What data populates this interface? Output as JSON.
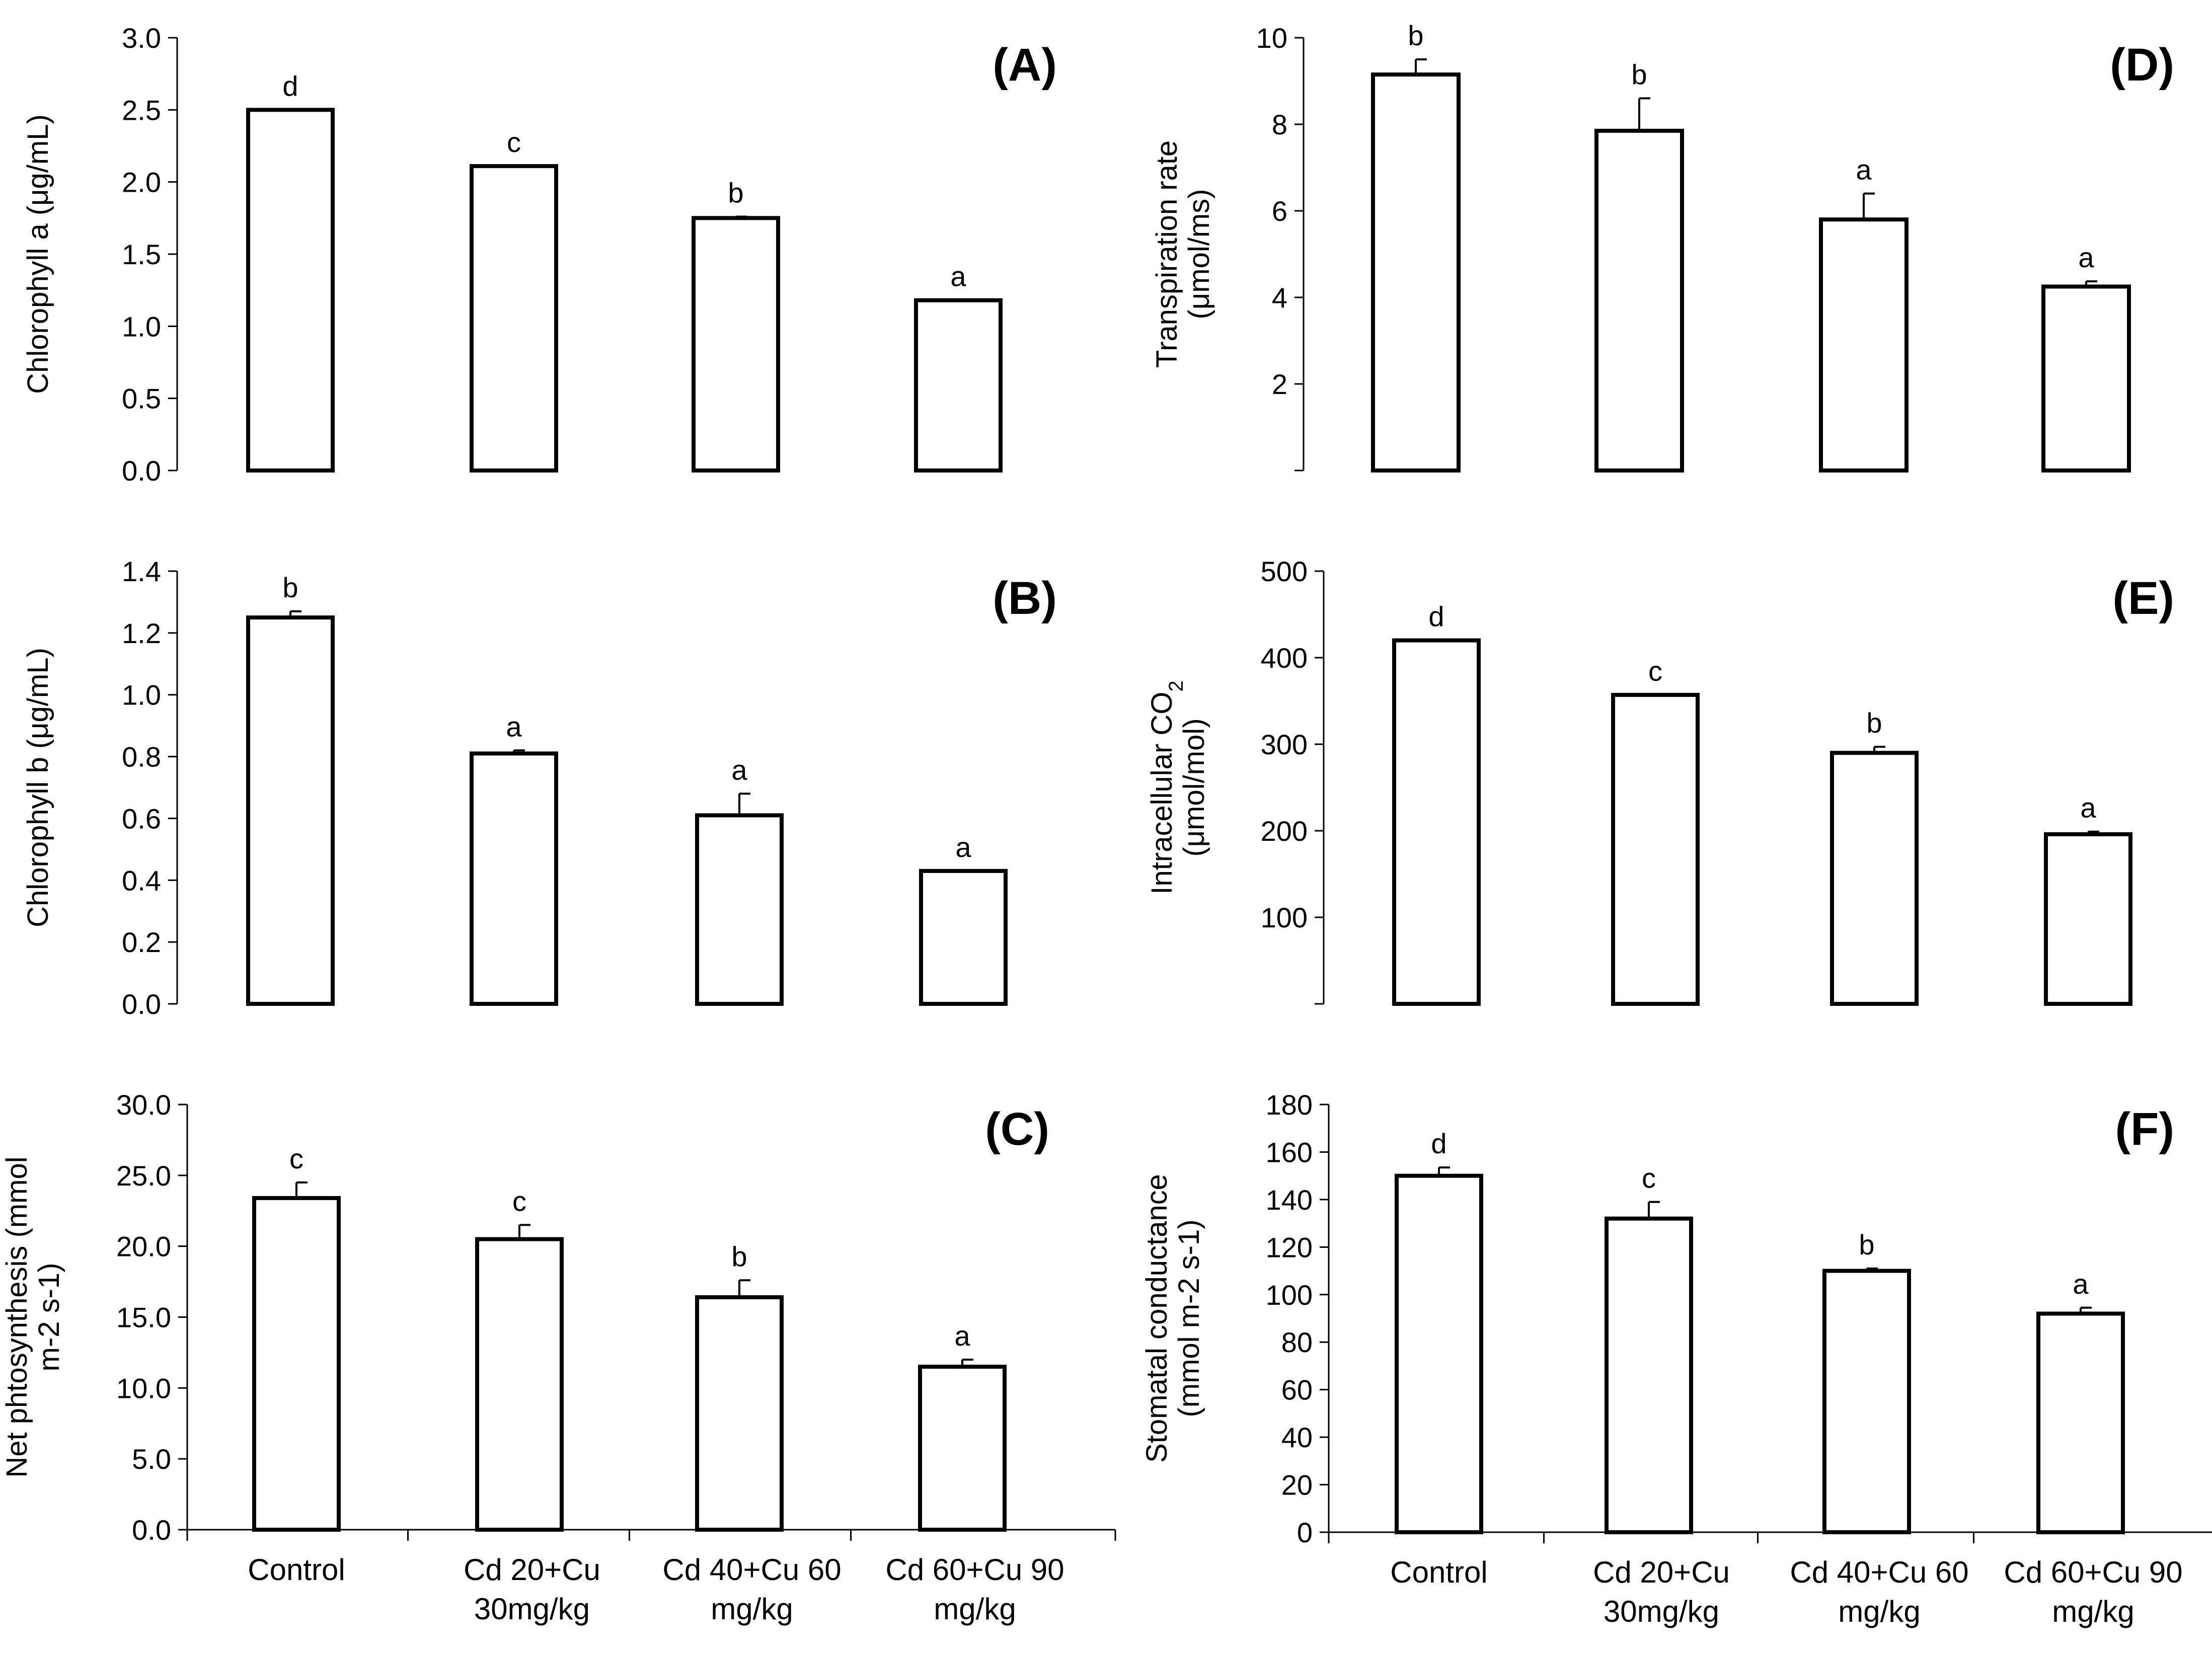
{
  "categories": [
    [
      "Control"
    ],
    [
      "Cd 20+Cu",
      "30mg/kg"
    ],
    [
      "Cd 40+Cu 60",
      "mg/kg"
    ],
    [
      "Cd 60+Cu 90",
      "mg/kg"
    ]
  ],
  "chart_data": [
    {
      "type": "bar",
      "panel_label": "(A)",
      "ylabel": [
        "Chlorophyll a (μg/mL)"
      ],
      "ylim": [
        0,
        3.0
      ],
      "yticks": [
        0.0,
        0.5,
        1.0,
        1.5,
        2.0,
        2.5,
        3.0
      ],
      "ytick_labels": [
        "0.0",
        "0.5",
        "1.0",
        "1.5",
        "2.0",
        "2.5",
        "3.0"
      ],
      "values": [
        2.5,
        2.11,
        1.75,
        1.18
      ],
      "errors": [
        0,
        0,
        0.01,
        0
      ],
      "sig": [
        "d",
        "c",
        "b",
        "a"
      ],
      "show_categories": false
    },
    {
      "type": "bar",
      "panel_label": "(B)",
      "ylabel": [
        "Chlorophyll b (μg/mL)"
      ],
      "ylim": [
        0,
        1.4
      ],
      "yticks": [
        0.0,
        0.2,
        0.4,
        0.6,
        0.8,
        1.0,
        1.2,
        1.4
      ],
      "ytick_labels": [
        "0.0",
        "0.2",
        "0.4",
        "0.6",
        "0.8",
        "1.0",
        "1.2",
        "1.4"
      ],
      "values": [
        1.25,
        0.81,
        0.61,
        0.43
      ],
      "errors": [
        0.02,
        0.01,
        0.07,
        0
      ],
      "sig": [
        "b",
        "a",
        "a",
        "a"
      ],
      "show_categories": false
    },
    {
      "type": "bar",
      "panel_label": "(C)",
      "ylabel": [
        "Net phtosynthesis (mmol",
        "m-2 s-1)"
      ],
      "ylim": [
        0,
        30.0
      ],
      "yticks": [
        0.0,
        5.0,
        10.0,
        15.0,
        20.0,
        25.0,
        30.0
      ],
      "ytick_labels": [
        "0.0",
        "5.0",
        "10.0",
        "15.0",
        "20.0",
        "25.0",
        "30.0"
      ],
      "values": [
        23.4,
        20.5,
        16.4,
        11.5
      ],
      "errors": [
        1.1,
        1.0,
        1.2,
        0.5
      ],
      "sig": [
        "c",
        "c",
        "b",
        "a"
      ],
      "show_categories": true
    },
    {
      "type": "bar",
      "panel_label": "(D)",
      "ylabel": [
        "Transpiration rate",
        "(μmol/ms)"
      ],
      "ylim": [
        0,
        10
      ],
      "yticks": [
        2,
        4,
        6,
        8,
        10
      ],
      "ytick_labels": [
        "2",
        "4",
        "6",
        "8",
        "10"
      ],
      "values": [
        9.15,
        7.85,
        5.8,
        4.25
      ],
      "errors": [
        0.35,
        0.75,
        0.6,
        0.12
      ],
      "sig": [
        "b",
        "b",
        "a",
        "a"
      ],
      "show_categories": false
    },
    {
      "type": "bar",
      "panel_label": "(E)",
      "ylabel": [
        "Intracellular CO2",
        "(μmol/mol)"
      ],
      "ylim": [
        0,
        500
      ],
      "yticks": [
        100,
        200,
        300,
        400,
        500
      ],
      "ytick_labels": [
        "100",
        "200",
        "300",
        "400",
        "500"
      ],
      "values": [
        420,
        357,
        290,
        196
      ],
      "errors": [
        0,
        0,
        7,
        3
      ],
      "sig": [
        "d",
        "c",
        "b",
        "a"
      ],
      "show_categories": false
    },
    {
      "type": "bar",
      "panel_label": "(F)",
      "ylabel": [
        "Stomatal conductance",
        "(mmol m-2 s-1)"
      ],
      "ylim": [
        0,
        180
      ],
      "yticks": [
        0,
        20,
        40,
        60,
        80,
        100,
        120,
        140,
        160,
        180
      ],
      "ytick_labels": [
        "0",
        "20",
        "40",
        "60",
        "80",
        "100",
        "120",
        "140",
        "160",
        "180"
      ],
      "values": [
        150,
        132,
        110,
        92
      ],
      "errors": [
        3.5,
        7,
        1,
        2.5
      ],
      "sig": [
        "d",
        "c",
        "b",
        "a"
      ],
      "show_categories": true
    }
  ]
}
